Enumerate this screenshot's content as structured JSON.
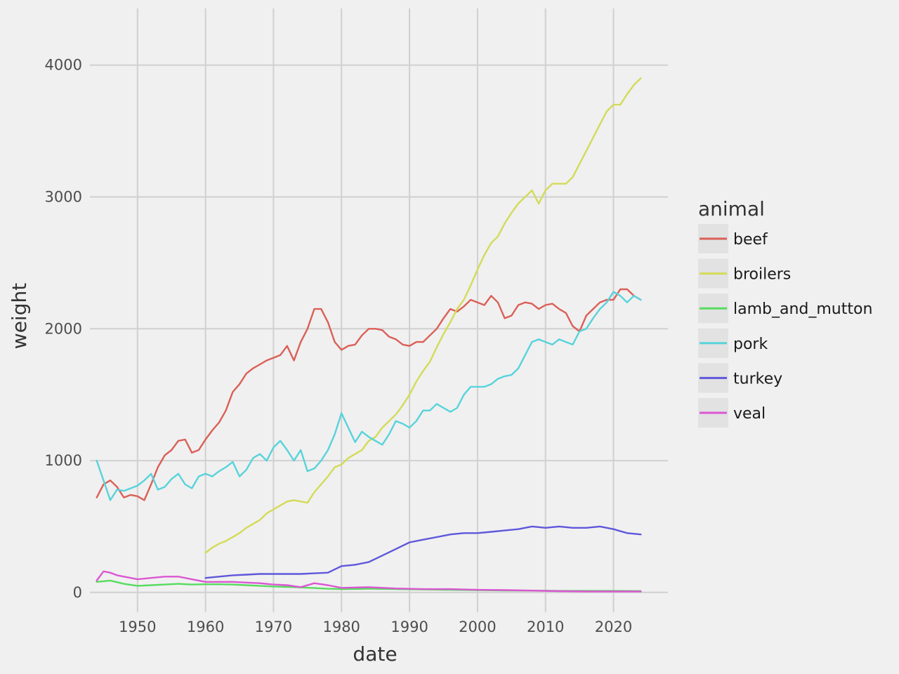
{
  "chart_data": {
    "type": "line",
    "xlabel": "date",
    "ylabel": "weight",
    "xlim": [
      1943.0,
      2028.0
    ],
    "ylim": [
      -150,
      4430
    ],
    "x_ticks": [
      1950,
      1960,
      1970,
      1980,
      1990,
      2000,
      2010,
      2020
    ],
    "y_ticks": [
      0,
      1000,
      2000,
      3000,
      4000
    ],
    "grid": true,
    "legend": {
      "title": "animal",
      "placement": "right"
    },
    "series": [
      {
        "name": "beef",
        "color": "#db5f57",
        "x": [
          1944,
          1945,
          1946,
          1947,
          1948,
          1949,
          1950,
          1951,
          1952,
          1953,
          1954,
          1955,
          1956,
          1957,
          1958,
          1959,
          1960,
          1961,
          1962,
          1963,
          1964,
          1965,
          1966,
          1967,
          1968,
          1969,
          1970,
          1971,
          1972,
          1973,
          1974,
          1975,
          1976,
          1977,
          1978,
          1979,
          1980,
          1981,
          1982,
          1983,
          1984,
          1985,
          1986,
          1987,
          1988,
          1989,
          1990,
          1991,
          1992,
          1993,
          1994,
          1995,
          1996,
          1997,
          1998,
          1999,
          2000,
          2001,
          2002,
          2003,
          2004,
          2005,
          2006,
          2007,
          2008,
          2009,
          2010,
          2011,
          2012,
          2013,
          2014,
          2015,
          2016,
          2017,
          2018,
          2019,
          2020,
          2021,
          2022,
          2023,
          2024
        ],
        "y": [
          720,
          820,
          850,
          800,
          720,
          740,
          730,
          700,
          820,
          950,
          1040,
          1080,
          1150,
          1160,
          1060,
          1080,
          1160,
          1230,
          1290,
          1380,
          1520,
          1580,
          1660,
          1700,
          1730,
          1760,
          1780,
          1800,
          1870,
          1760,
          1900,
          2000,
          2150,
          2150,
          2050,
          1900,
          1840,
          1870,
          1880,
          1950,
          2000,
          2000,
          1990,
          1940,
          1920,
          1880,
          1870,
          1900,
          1900,
          1950,
          2000,
          2080,
          2150,
          2130,
          2170,
          2220,
          2200,
          2180,
          2250,
          2200,
          2080,
          2100,
          2180,
          2200,
          2190,
          2150,
          2180,
          2190,
          2150,
          2120,
          2020,
          1980,
          2100,
          2150,
          2200,
          2220,
          2220,
          2300,
          2300,
          2250,
          2220
        ]
      },
      {
        "name": "broilers",
        "color": "#d3db57",
        "x": [
          1960,
          1961,
          1962,
          1963,
          1964,
          1965,
          1966,
          1967,
          1968,
          1969,
          1970,
          1971,
          1972,
          1973,
          1974,
          1975,
          1976,
          1977,
          1978,
          1979,
          1980,
          1981,
          1982,
          1983,
          1984,
          1985,
          1986,
          1987,
          1988,
          1989,
          1990,
          1991,
          1992,
          1993,
          1994,
          1995,
          1996,
          1997,
          1998,
          1999,
          2000,
          2001,
          2002,
          2003,
          2004,
          2005,
          2006,
          2007,
          2008,
          2009,
          2010,
          2011,
          2012,
          2013,
          2014,
          2015,
          2016,
          2017,
          2018,
          2019,
          2020,
          2021,
          2022,
          2023,
          2024
        ],
        "y": [
          300,
          340,
          370,
          390,
          420,
          450,
          490,
          520,
          550,
          600,
          630,
          660,
          690,
          700,
          690,
          680,
          760,
          820,
          880,
          950,
          970,
          1020,
          1050,
          1080,
          1150,
          1180,
          1250,
          1300,
          1350,
          1420,
          1500,
          1600,
          1680,
          1750,
          1860,
          1960,
          2050,
          2150,
          2220,
          2330,
          2450,
          2560,
          2650,
          2700,
          2800,
          2880,
          2950,
          3000,
          3050,
          2950,
          3050,
          3100,
          3100,
          3100,
          3150,
          3250,
          3350,
          3450,
          3550,
          3650,
          3700,
          3700,
          3780,
          3850,
          3900
        ]
      },
      {
        "name": "lamb_and_mutton",
        "color": "#57db5f",
        "x": [
          1944,
          1946,
          1948,
          1950,
          1952,
          1954,
          1956,
          1958,
          1960,
          1962,
          1964,
          1966,
          1968,
          1970,
          1972,
          1974,
          1976,
          1978,
          1980,
          1984,
          1988,
          1992,
          1996,
          2000,
          2004,
          2008,
          2012,
          2016,
          2020,
          2024
        ],
        "y": [
          80,
          90,
          65,
          50,
          55,
          60,
          65,
          60,
          62,
          62,
          60,
          55,
          50,
          45,
          42,
          38,
          33,
          28,
          26,
          28,
          26,
          23,
          20,
          18,
          15,
          14,
          12,
          12,
          12,
          11
        ]
      },
      {
        "name": "pork",
        "color": "#57d3db",
        "x": [
          1944,
          1945,
          1946,
          1947,
          1948,
          1949,
          1950,
          1951,
          1952,
          1953,
          1954,
          1955,
          1956,
          1957,
          1958,
          1959,
          1960,
          1961,
          1962,
          1963,
          1964,
          1965,
          1966,
          1967,
          1968,
          1969,
          1970,
          1971,
          1972,
          1973,
          1974,
          1975,
          1976,
          1977,
          1978,
          1979,
          1980,
          1981,
          1982,
          1983,
          1984,
          1985,
          1986,
          1987,
          1988,
          1989,
          1990,
          1991,
          1992,
          1993,
          1994,
          1995,
          1996,
          1997,
          1998,
          1999,
          2000,
          2001,
          2002,
          2003,
          2004,
          2005,
          2006,
          2007,
          2008,
          2009,
          2010,
          2011,
          2012,
          2013,
          2014,
          2015,
          2016,
          2017,
          2018,
          2019,
          2020,
          2021,
          2022,
          2023,
          2024
        ],
        "y": [
          1000,
          850,
          700,
          780,
          770,
          790,
          810,
          850,
          900,
          780,
          800,
          860,
          900,
          820,
          790,
          880,
          900,
          880,
          920,
          950,
          990,
          880,
          930,
          1020,
          1050,
          1000,
          1100,
          1150,
          1080,
          1000,
          1080,
          920,
          940,
          1000,
          1080,
          1200,
          1360,
          1250,
          1140,
          1220,
          1180,
          1150,
          1120,
          1200,
          1300,
          1280,
          1250,
          1300,
          1380,
          1380,
          1430,
          1400,
          1370,
          1400,
          1500,
          1560,
          1560,
          1560,
          1580,
          1620,
          1640,
          1650,
          1700,
          1800,
          1900,
          1920,
          1900,
          1880,
          1920,
          1900,
          1880,
          1980,
          2000,
          2080,
          2150,
          2200,
          2280,
          2250,
          2200,
          2250,
          2220
        ]
      },
      {
        "name": "turkey",
        "color": "#5f57db",
        "x": [
          1960,
          1962,
          1964,
          1966,
          1968,
          1970,
          1972,
          1974,
          1976,
          1978,
          1980,
          1982,
          1984,
          1986,
          1988,
          1990,
          1992,
          1994,
          1996,
          1998,
          2000,
          2002,
          2004,
          2006,
          2008,
          2010,
          2012,
          2014,
          2016,
          2018,
          2020,
          2022,
          2024
        ],
        "y": [
          110,
          120,
          130,
          135,
          140,
          140,
          140,
          140,
          145,
          150,
          200,
          210,
          230,
          280,
          330,
          380,
          400,
          420,
          440,
          450,
          450,
          460,
          470,
          480,
          500,
          490,
          500,
          490,
          490,
          500,
          480,
          450,
          440
        ]
      },
      {
        "name": "veal",
        "color": "#db57d3",
        "x": [
          1944,
          1945,
          1946,
          1947,
          1948,
          1950,
          1952,
          1954,
          1956,
          1958,
          1960,
          1962,
          1964,
          1966,
          1968,
          1970,
          1972,
          1974,
          1976,
          1978,
          1980,
          1984,
          1988,
          1992,
          1996,
          2000,
          2004,
          2008,
          2012,
          2016,
          2020,
          2024
        ],
        "y": [
          90,
          160,
          150,
          130,
          120,
          100,
          110,
          120,
          120,
          100,
          80,
          80,
          80,
          75,
          70,
          60,
          55,
          40,
          70,
          55,
          35,
          40,
          30,
          25,
          25,
          20,
          18,
          14,
          10,
          7,
          7,
          7
        ]
      }
    ]
  }
}
